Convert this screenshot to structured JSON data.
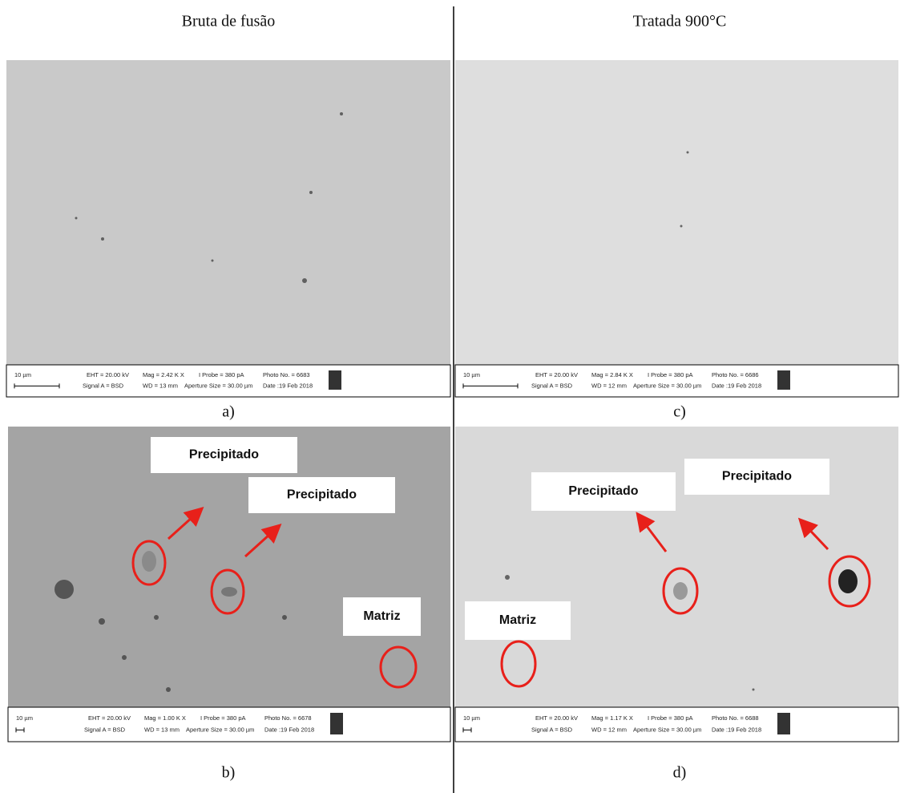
{
  "columns": [
    "Bruta de fusão",
    "Tratada 900°C"
  ],
  "panels": [
    {
      "label": "a)",
      "info": {
        "scale": "10 µm",
        "eht": "EHT = 20.00 kV",
        "mag": "Mag = 2.42 K X",
        "probe": "I Probe = 380 pA",
        "photo": "Photo No. = 6683",
        "signal": "Signal A = BSD",
        "wd": "WD = 13 mm",
        "aperture": "Aperture Size = 30.00 µm",
        "date": "Date :19 Feb 2018"
      },
      "annotations": []
    },
    {
      "label": "b)",
      "info": {
        "scale": "10 µm",
        "eht": "EHT = 20.00 kV",
        "mag": "Mag = 1.00 K X",
        "probe": "I Probe = 380 pA",
        "photo": "Photo No. = 6678",
        "signal": "Signal A = BSD",
        "wd": "WD = 13 mm",
        "aperture": "Aperture Size = 30.00 µm",
        "date": "Date :19 Feb 2018"
      },
      "annotations": [
        "Precipitado",
        "Precipitado",
        "Matriz"
      ]
    },
    {
      "label": "c)",
      "info": {
        "scale": "10 µm",
        "eht": "EHT = 20.00 kV",
        "mag": "Mag = 2.84 K X",
        "probe": "I Probe = 380 pA",
        "photo": "Photo No. = 6686",
        "signal": "Signal A = BSD",
        "wd": "WD = 12 mm",
        "aperture": "Aperture Size = 30.00 µm",
        "date": "Date :19 Feb 2018"
      },
      "annotations": []
    },
    {
      "label": "d)",
      "info": {
        "scale": "10 µm",
        "eht": "EHT = 20.00 kV",
        "mag": "Mag = 1.17 K X",
        "probe": "I Probe = 380 pA",
        "photo": "Photo No. = 6688",
        "signal": "Signal A = BSD",
        "wd": "WD = 12 mm",
        "aperture": "Aperture Size = 30.00 µm",
        "date": "Date :19 Feb 2018"
      },
      "annotations": [
        "Precipitado",
        "Precipitado",
        "Matriz"
      ]
    }
  ]
}
